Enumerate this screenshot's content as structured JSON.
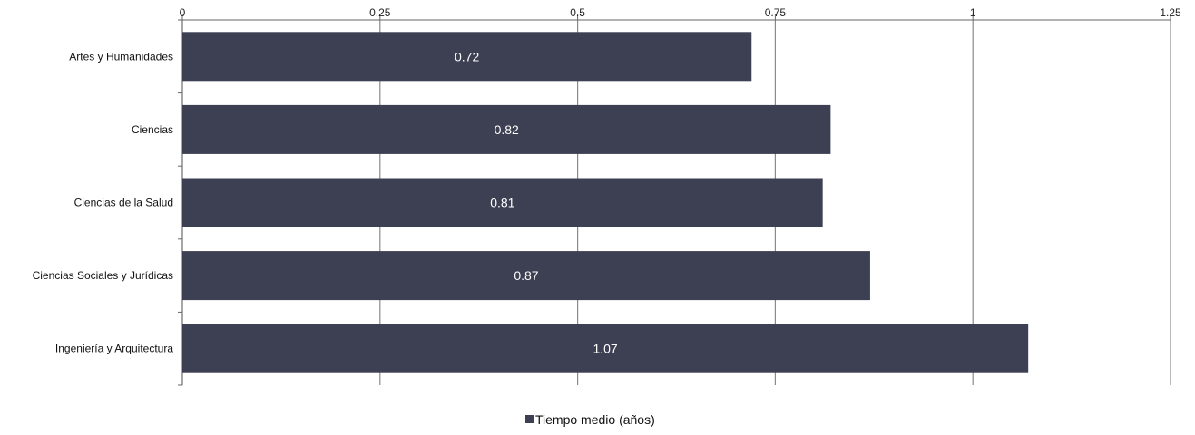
{
  "chart_data": {
    "type": "bar",
    "orientation": "horizontal",
    "categories": [
      "Artes y Humanidades",
      "Ciencias",
      "Ciencias de la Salud",
      "Ciencias Sociales y Jurídicas",
      "Ingeniería y Arquitectura"
    ],
    "series": [
      {
        "name": "Tiempo medio (años)",
        "values": [
          0.72,
          0.82,
          0.81,
          0.87,
          1.07
        ],
        "color": "#3d3f52"
      }
    ],
    "data_labels": [
      "0.72",
      "0.82",
      "0.81",
      "0.87",
      "1.07"
    ],
    "x_ticks": [
      0,
      0.25,
      0.5,
      0.75,
      1,
      1.25
    ],
    "x_tick_labels": [
      "0",
      "0.25",
      "0.5",
      "0.75",
      "1",
      "1.25"
    ],
    "xlim": [
      0,
      1.25
    ],
    "x_axis_position": "top",
    "grid": true,
    "legend": {
      "position": "bottom",
      "label": "Tiempo medio (años)"
    },
    "title": "",
    "xlabel": "",
    "ylabel": ""
  }
}
